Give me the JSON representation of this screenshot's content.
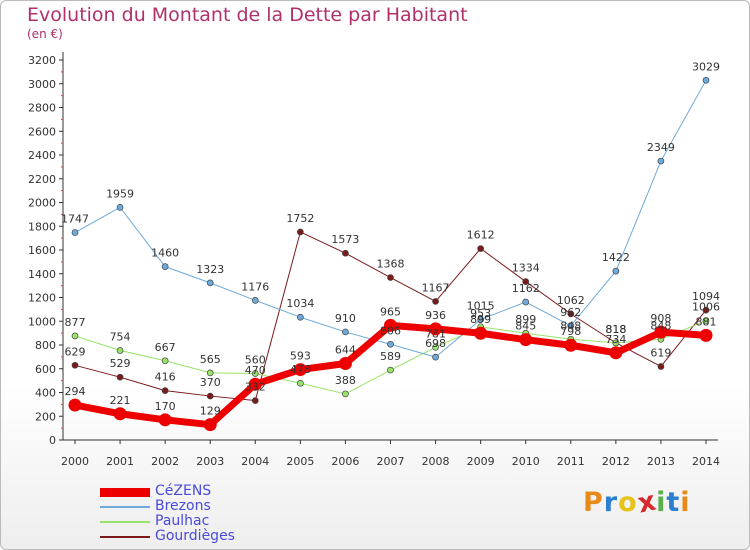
{
  "title": "Evolution du Montant de la Dette par Habitant",
  "subtitle": "(en €)",
  "logo_text": "Proxiti",
  "logo_colors": [
    "#e88a1a",
    "#2a7fd0",
    "#e6c31a",
    "#d8282f",
    "#5ab04a",
    "#2a7fd0",
    "#e88a1a"
  ],
  "chart_data": {
    "type": "line",
    "title": "Evolution du Montant de la Dette par Habitant",
    "ylabel": "(en €)",
    "x": [
      "2000",
      "2001",
      "2002",
      "2003",
      "2004",
      "2005",
      "2006",
      "2007",
      "2008",
      "2009",
      "2010",
      "2011",
      "2012",
      "2013",
      "2014"
    ],
    "y_ticks": [
      "0",
      "200",
      "400",
      "600",
      "800",
      "1000",
      "1200",
      "1400",
      "1600",
      "1800",
      "2000",
      "2200",
      "2400",
      "2600",
      "2800",
      "3000",
      "3200"
    ],
    "ylim": [
      0,
      3200
    ],
    "grid": false,
    "legend_position": "bottom-left",
    "series": [
      {
        "name": "Gourdièges",
        "color": "#7a1a1a",
        "width": 1,
        "values": [
          629,
          529,
          416,
          370,
          332,
          1752,
          1573,
          1368,
          1167,
          1612,
          1334,
          1062,
          818,
          619,
          1094
        ],
        "labels": [
          "629",
          "529",
          "416",
          "370",
          "332",
          "1752",
          "1573",
          "1368",
          "1167",
          "1612",
          "1334",
          "1062",
          "818",
          "619",
          "1094"
        ]
      },
      {
        "name": "Paulhac",
        "color": "#99e36a",
        "width": 1,
        "values": [
          877,
          754,
          667,
          565,
          560,
          478,
          388,
          589,
          781,
          953,
          899,
          848,
          818,
          848,
          1006
        ],
        "labels": [
          "877",
          "754",
          "667",
          "565",
          "560",
          "478",
          "388",
          "589",
          "781",
          "953",
          "899",
          "848",
          "818",
          "848",
          "1006"
        ]
      },
      {
        "name": "Brezons",
        "color": "#6ea9db",
        "width": 1,
        "values": [
          1747,
          1959,
          1460,
          1323,
          1176,
          1034,
          910,
          806,
          698,
          1015,
          1162,
          962,
          1422,
          2349,
          3029
        ],
        "labels": [
          "1747",
          "1959",
          "1460",
          "1323",
          "1176",
          "1034",
          "910",
          "806",
          "698",
          "1015",
          "1162",
          "962",
          "1422",
          "2349",
          "3029"
        ]
      },
      {
        "name": "CéZENS",
        "color": "#ee0000",
        "width": 7,
        "values": [
          294,
          221,
          170,
          129,
          470,
          593,
          644,
          965,
          936,
          899,
          845,
          798,
          734,
          908,
          881
        ],
        "labels": [
          "294",
          "221",
          "170",
          "129",
          "470",
          "593",
          "644",
          "965",
          "936",
          "899",
          "845",
          "798",
          "734",
          "908",
          "881"
        ]
      }
    ],
    "legend_order": [
      "CéZENS",
      "Brezons",
      "Paulhac",
      "Gourdièges"
    ]
  }
}
